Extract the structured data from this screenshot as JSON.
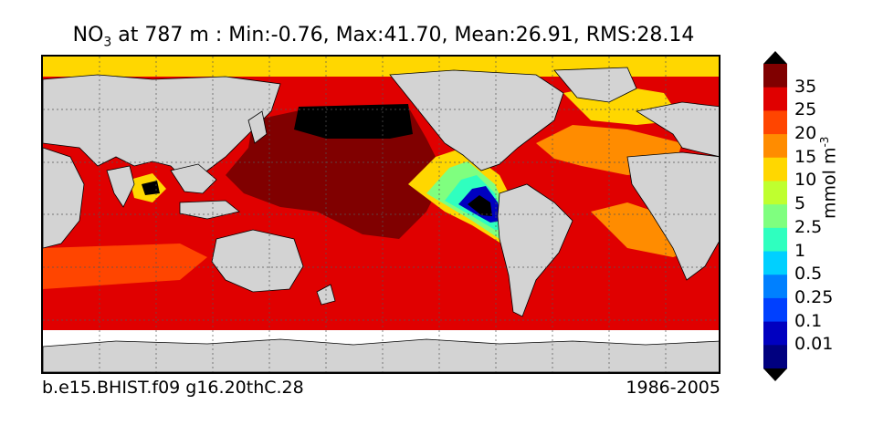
{
  "title": {
    "variable": "NO",
    "variable_sub": "3",
    "rest": " at 787 m : Min:-0.76, Max:41.70, Mean:26.91, RMS:28.14"
  },
  "caption_left": "b.e15.BHIST.f09 g16.20thC.28",
  "caption_right": "1986-2005",
  "colorbar": {
    "units": "mmol m",
    "units_sup": "-3",
    "levels": [
      {
        "label": "35",
        "color": "#800000"
      },
      {
        "label": "25",
        "color": "#e00000"
      },
      {
        "label": "20",
        "color": "#ff4500"
      },
      {
        "label": "15",
        "color": "#ff8c00"
      },
      {
        "label": "10",
        "color": "#ffd700"
      },
      {
        "label": "5",
        "color": "#bfff2f"
      },
      {
        "label": "2.5",
        "color": "#7fff7f"
      },
      {
        "label": "1",
        "color": "#2fffbf"
      },
      {
        "label": "0.5",
        "color": "#00d0ff"
      },
      {
        "label": "0.25",
        "color": "#0080ff"
      },
      {
        "label": "0.1",
        "color": "#0040ff"
      },
      {
        "label": "0.01",
        "color": "#0000c0"
      }
    ],
    "over_color": "#000000",
    "under_color": "#000000",
    "lowest_color": "#00007f"
  },
  "map": {
    "land_color": "#d3d3d3",
    "ocean_default_color": "#e00000",
    "no_data_color": "#ffffff",
    "grid": "dotted"
  }
}
